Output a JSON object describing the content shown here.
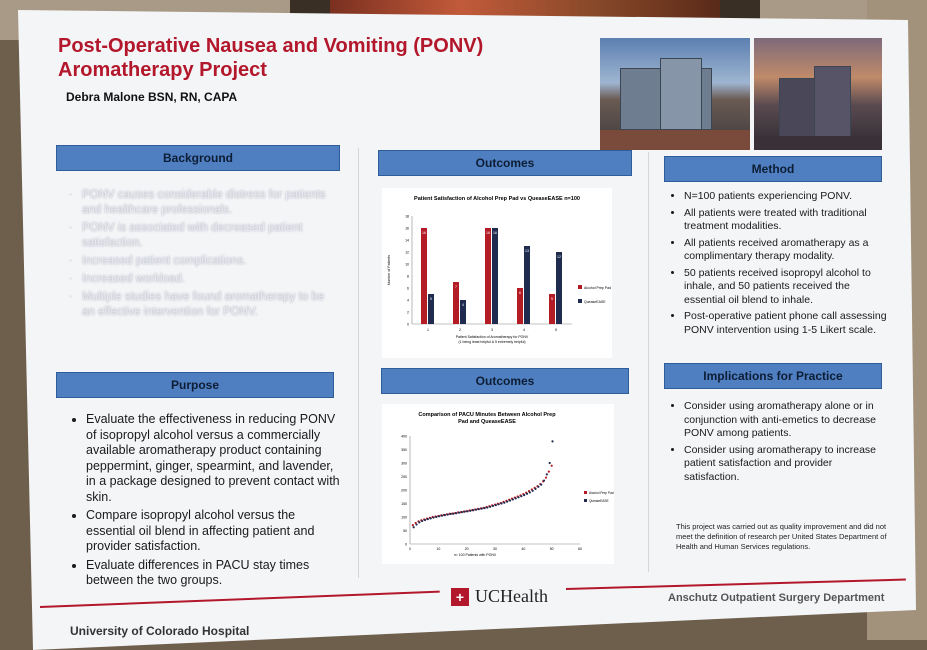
{
  "poster": {
    "title_line1": "Post-Operative Nausea and Vomiting (PONV)",
    "title_line2": "Aromatherapy Project",
    "author": "Debra Malone BSN, RN, CAPA",
    "footer_logo": "UCHealth",
    "department": "Anschutz Outpatient Surgery Department",
    "institution": "University of Colorado Hospital"
  },
  "background": {
    "heading": "Background",
    "bullets": [
      "PONV causes considerable distress for patients and healthcare professionals.",
      "PONV is associated with decreased patient satisfaction.",
      "Increased patient complications.",
      "Increased workload.",
      "Multiple studies have found aromatherapy to be an effective intervention for PONV."
    ]
  },
  "purpose": {
    "heading": "Purpose",
    "bullets": [
      "Evaluate the effectiveness in reducing PONV of isopropyl alcohol versus a commercially available aromatherapy product containing peppermint, ginger, spearmint, and lavender, in a package designed to prevent contact with skin.",
      "Compare isopropyl alcohol versus the essential oil blend in affecting patient and provider satisfaction.",
      "Evaluate differences in PACU stay times between the two groups."
    ]
  },
  "method": {
    "heading": "Method",
    "bullets": [
      "N=100 patients experiencing PONV.",
      "All patients were treated with traditional treatment modalities.",
      "All patients received aromatherapy as a complimentary therapy modality.",
      "50 patients received isopropyl alcohol to inhale, and 50 patients received the essential oil blend to inhale.",
      "Post-operative patient phone call assessing PONV intervention using 1-5 Likert scale."
    ]
  },
  "implications": {
    "heading": "Implications for Practice",
    "bullets": [
      "Consider using aromatherapy alone or in conjunction with anti-emetics to decrease PONV among patients.",
      "Consider using aromatherapy to increase patient satisfaction and provider satisfaction."
    ],
    "note": "This project was carried out as quality improvement and did not meet the definition of research per United States Department of Health and Human Services regulations."
  },
  "outcomes1": {
    "heading": "Outcomes"
  },
  "outcomes2": {
    "heading": "Outcomes"
  },
  "colors": {
    "alcohol": "#b31b25",
    "queasease": "#1f2c4f",
    "accent": "#b3172b",
    "header_bar": "#4f7fc0"
  },
  "chart_data": [
    {
      "type": "bar",
      "title": "Patient Satisfaction of Alcohol Prep Pad vs QueaseEASE  n=100",
      "categories": [
        "1",
        "2",
        "3",
        "4",
        "5"
      ],
      "series": [
        {
          "name": "Alcohol Prep Pad",
          "values": [
            16,
            7,
            16,
            6,
            5
          ]
        },
        {
          "name": "QueaseEASE",
          "values": [
            5,
            4,
            16,
            13,
            12
          ]
        }
      ],
      "ylim": [
        0,
        18
      ],
      "yticks": [
        "0",
        "2",
        "4",
        "6",
        "8",
        "10",
        "12",
        "14",
        "16",
        "18"
      ],
      "ylabel": "Number of Patients",
      "xlabel": "Patient Satisfaction of Aromatherapy for PONV",
      "xlabel2": "(1 being least helpful & 5 extremely helpful)",
      "legend_position": "right"
    },
    {
      "type": "scatter",
      "title": "Comparison of PACU Minutes Between Alcohol Prep Pad and QueaseEASE",
      "xlabel": "n= 100 Patients with PONV",
      "xlim": [
        0,
        60
      ],
      "xticks": [
        "0",
        "10",
        "20",
        "30",
        "40",
        "50",
        "60"
      ],
      "ylim": [
        0,
        400
      ],
      "yticks": [
        "0",
        "50",
        "100",
        "150",
        "200",
        "250",
        "300",
        "350",
        "400"
      ],
      "legend_position": "right",
      "series": [
        {
          "name": "Alcohol Prep Pad",
          "values": [
            70,
            78,
            84,
            88,
            91,
            94,
            97,
            100,
            102,
            104,
            106,
            108,
            110,
            112,
            113,
            115,
            117,
            118,
            120,
            122,
            124,
            126,
            128,
            130,
            132,
            134,
            137,
            140,
            143,
            146,
            149,
            152,
            156,
            160,
            164,
            168,
            172,
            176,
            180,
            185,
            190,
            196,
            202,
            208,
            214,
            222,
            232,
            246,
            268,
            290
          ]
        },
        {
          "name": "QueaseEASE",
          "values": [
            62,
            72,
            80,
            85,
            89,
            92,
            95,
            98,
            100,
            103,
            105,
            107,
            109,
            111,
            112,
            114,
            116,
            118,
            120,
            121,
            123,
            125,
            127,
            129,
            131,
            133,
            135,
            138,
            141,
            144,
            147,
            150,
            153,
            157,
            161,
            165,
            169,
            173,
            177,
            181,
            186,
            191,
            197,
            204,
            212,
            220,
            235,
            258,
            300,
            380
          ]
        }
      ]
    }
  ]
}
